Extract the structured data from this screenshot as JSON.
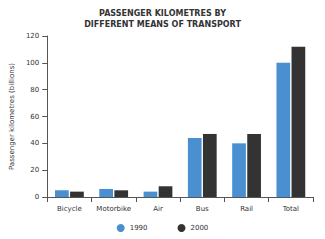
{
  "chart_data": {
    "type": "bar",
    "title": "PASSENGER KILOMETRES BY\nDIFFERENT MEANS OF TRANSPORT",
    "y_label": "Passenger kilometres (billions)",
    "categories": [
      "Bicycle",
      "Motorbike",
      "Air",
      "Bus",
      "Rail",
      "Total"
    ],
    "series": [
      {
        "name": "1990",
        "color": "#4a8fd0",
        "values": [
          5,
          6,
          4,
          44,
          40,
          100
        ]
      },
      {
        "name": "2000",
        "color": "#333333",
        "values": [
          4,
          5,
          8,
          47,
          47,
          112
        ]
      }
    ],
    "ylim": [
      0,
      120
    ],
    "yticks": [
      0,
      20,
      40,
      60,
      80,
      100,
      120
    ],
    "grid": false,
    "legend": "bottom"
  }
}
